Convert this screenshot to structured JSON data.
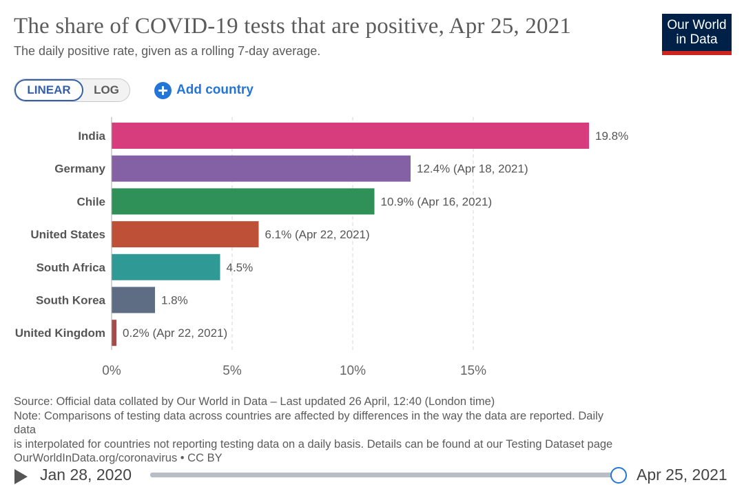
{
  "header": {
    "title": "The share of COVID-19 tests that are positive, Apr 25, 2021",
    "subtitle": "The daily positive rate, given as a rolling 7-day average.",
    "logo_line1": "Our World",
    "logo_line2": "in Data",
    "logo_colors": {
      "background": "#002147",
      "stripe": "#ce261e"
    }
  },
  "controls": {
    "scale_linear": "LINEAR",
    "scale_log": "LOG",
    "selected_scale": "LINEAR",
    "add_country": "Add country",
    "add_icon": "plus-circle-icon"
  },
  "chart_data": {
    "type": "bar",
    "orientation": "horizontal",
    "categories": [
      "India",
      "Germany",
      "Chile",
      "United States",
      "South Africa",
      "South Korea",
      "United Kingdom"
    ],
    "values": [
      19.8,
      12.4,
      10.9,
      6.1,
      4.5,
      1.8,
      0.2
    ],
    "value_labels": [
      "19.8%",
      "12.4% (Apr 18, 2021)",
      "10.9% (Apr 16, 2021)",
      "6.1% (Apr 22, 2021)",
      "4.5%",
      "1.8%",
      "0.2% (Apr 22, 2021)"
    ],
    "colors": [
      "#d73c7c",
      "#8460a5",
      "#2f9157",
      "#bf5038",
      "#2f9a95",
      "#5e6d83",
      "#a64a4a"
    ],
    "x_ticks": [
      0,
      5,
      10,
      15
    ],
    "x_tick_labels": [
      "0%",
      "5%",
      "10%",
      "15%"
    ],
    "xlim": [
      0,
      19.8
    ],
    "grid": "vertical dashed",
    "xlabel": "",
    "ylabel": ""
  },
  "footer": {
    "source": "Source: Official data collated by Our World in Data – Last updated 26 April, 12:40 (London time)",
    "note_1": "Note: Comparisons of testing data across countries are affected by differences in the way the data are reported. Daily",
    "note_2": "data",
    "note_3": "is interpolated for countries not reporting testing data on a daily basis. Details can be found at our Testing Dataset page",
    "url_license": "OurWorldInData.org/coronavirus • CC BY"
  },
  "timeline": {
    "start": "Jan 28, 2020",
    "end": "Apr 25, 2021",
    "play_icon": "play-icon",
    "position": 1.0
  }
}
